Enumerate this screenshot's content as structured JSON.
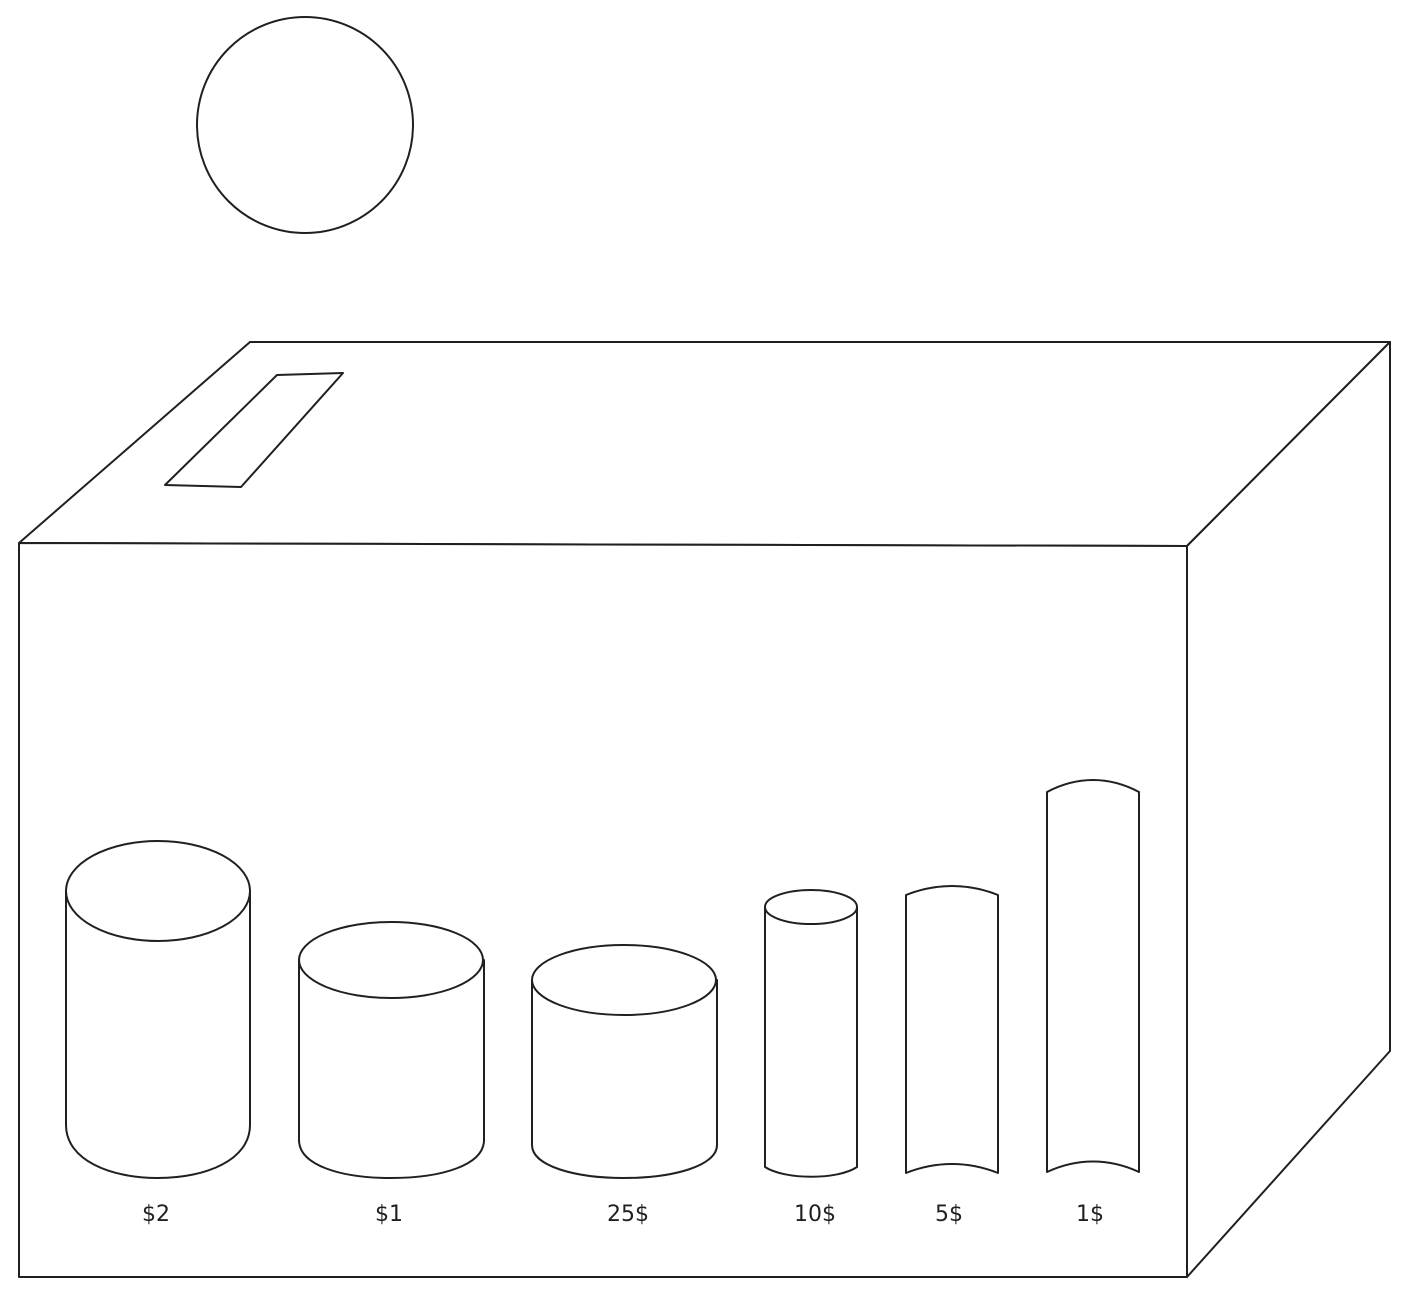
{
  "diagram": {
    "labels": {
      "coin_2_dollar": "$2",
      "coin_1_dollar": "$1",
      "coin_25": "25$",
      "coin_10": "10$",
      "coin_5": "5$",
      "coin_1": "1$"
    }
  }
}
